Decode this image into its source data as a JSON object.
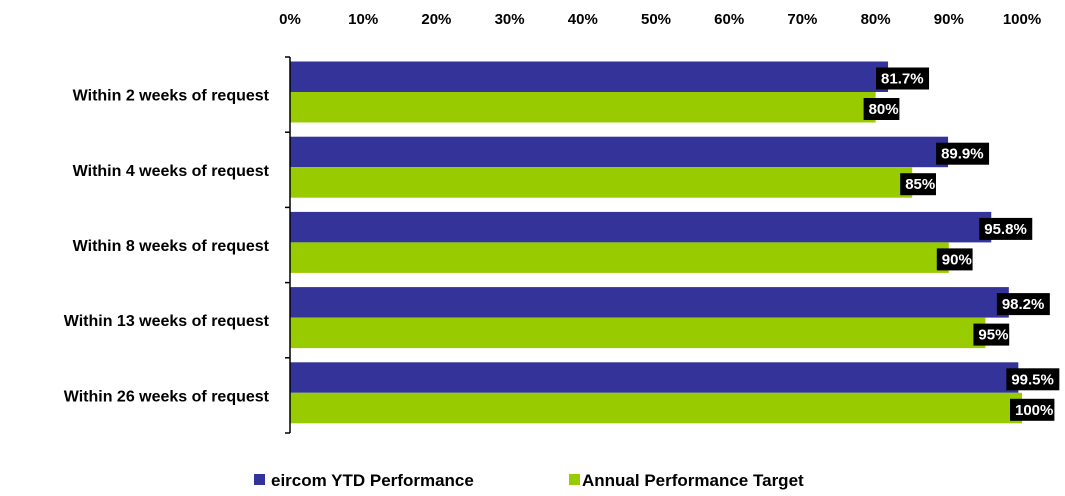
{
  "chart_data": {
    "type": "bar",
    "orientation": "horizontal",
    "categories": [
      "Within 2 weeks of request",
      "Within 4 weeks of request",
      "Within 8 weeks of request",
      "Within 13 weeks of request",
      "Within 26 weeks of request"
    ],
    "series": [
      {
        "name": "eircom YTD Performance",
        "color": "#333399",
        "values": [
          81.7,
          89.9,
          95.8,
          98.2,
          99.5
        ],
        "labels": [
          "81.7%",
          "89.9%",
          "95.8%",
          "98.2%",
          "99.5%"
        ]
      },
      {
        "name": "Annual Performance Target",
        "color": "#99cc00",
        "values": [
          80,
          85,
          90,
          95,
          100
        ],
        "labels": [
          "80%",
          "85%",
          "90%",
          "95%",
          "100%"
        ]
      }
    ],
    "xlim": [
      0,
      100
    ],
    "x_ticks": [
      "0%",
      "10%",
      "20%",
      "30%",
      "40%",
      "50%",
      "60%",
      "70%",
      "80%",
      "90%",
      "100%"
    ],
    "x_axis_position": "top",
    "grid": false,
    "legend_position": "bottom",
    "data_label_style": "white text on black box"
  }
}
